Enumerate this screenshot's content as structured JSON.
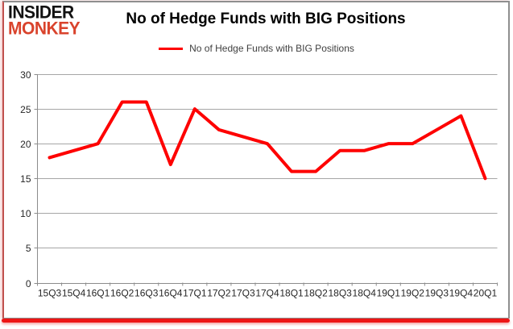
{
  "logo": {
    "line1": "INSIDER",
    "line2": "MONKEY",
    "line1_color": "#121212",
    "line2_color": "#d9432c"
  },
  "header": {
    "title": "No of Hedge Funds with BIG Positions"
  },
  "legend": {
    "label": "No of Hedge Funds with BIG Positions",
    "line_color": "#fe0000"
  },
  "chart_data": {
    "type": "line",
    "title": "No of Hedge Funds with BIG Positions",
    "categories": [
      "15Q3",
      "15Q4",
      "16Q1",
      "16Q2",
      "16Q3",
      "16Q4",
      "17Q1",
      "17Q2",
      "17Q3",
      "17Q4",
      "18Q1",
      "18Q2",
      "18Q3",
      "18Q4",
      "19Q1",
      "19Q2",
      "19Q3",
      "19Q4",
      "20Q1"
    ],
    "series": [
      {
        "name": "No of Hedge Funds with BIG Positions",
        "color": "#fe0000",
        "values": [
          18,
          19,
          20,
          26,
          26,
          17,
          25,
          22,
          21,
          20,
          16,
          16,
          19,
          19,
          20,
          20,
          22,
          24,
          15
        ]
      }
    ],
    "ylim": [
      0,
      30
    ],
    "yticks": [
      0,
      5,
      10,
      15,
      20,
      25,
      30
    ],
    "grid": true,
    "legend_position": "top-center",
    "colors": {
      "gridline": "#a6a6a6",
      "axis": "#8c8c8c",
      "tick_label": "#262626"
    }
  }
}
